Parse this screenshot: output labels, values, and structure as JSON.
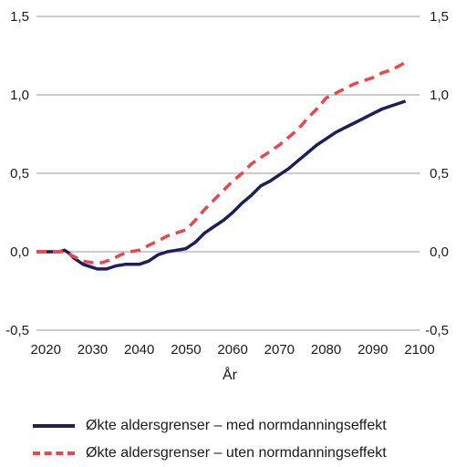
{
  "chart_data": {
    "type": "line",
    "title": "",
    "xlabel": "År",
    "ylabel": "",
    "xlim": [
      2018,
      2100
    ],
    "ylim": [
      -0.5,
      1.5
    ],
    "x_ticks": [
      2020,
      2030,
      2040,
      2050,
      2060,
      2070,
      2080,
      2090,
      2100
    ],
    "y_ticks": [
      -0.5,
      0.0,
      0.5,
      1.0,
      1.5
    ],
    "y_tick_labels": [
      "-0,5",
      "0,0",
      "0,5",
      "1,0",
      "1,5"
    ],
    "x_tick_labels": [
      "2020",
      "2030",
      "2040",
      "2050",
      "2060",
      "2070",
      "2080",
      "2090",
      "2100"
    ],
    "y_axis_both_sides": true,
    "grid": "horizontal",
    "legend_position": "bottom",
    "series": [
      {
        "name": "Økte aldersgrenser – med normdanningseffekt",
        "color": "#1c1f5a",
        "style": "solid",
        "x": [
          2018,
          2023,
          2024,
          2025,
          2026,
          2028,
          2030,
          2031,
          2033,
          2035,
          2037,
          2038,
          2040,
          2042,
          2044,
          2046,
          2048,
          2050,
          2052,
          2054,
          2056,
          2058,
          2060,
          2062,
          2064,
          2066,
          2068,
          2070,
          2072,
          2074,
          2076,
          2078,
          2080,
          2082,
          2084,
          2086,
          2088,
          2090,
          2092,
          2094,
          2096,
          2097
        ],
        "y": [
          0.0,
          0.0,
          0.01,
          -0.01,
          -0.04,
          -0.08,
          -0.1,
          -0.11,
          -0.11,
          -0.09,
          -0.08,
          -0.08,
          -0.08,
          -0.06,
          -0.02,
          0.0,
          0.01,
          0.02,
          0.06,
          0.12,
          0.16,
          0.2,
          0.25,
          0.31,
          0.36,
          0.42,
          0.45,
          0.49,
          0.53,
          0.58,
          0.63,
          0.68,
          0.72,
          0.76,
          0.79,
          0.82,
          0.85,
          0.88,
          0.91,
          0.93,
          0.95,
          0.96
        ]
      },
      {
        "name": "Økte aldersgrenser – uten normdanningseffekt",
        "color": "#e8474d",
        "style": "dashed",
        "x": [
          2018,
          2024,
          2026,
          2028,
          2030,
          2032,
          2034,
          2036,
          2038,
          2040,
          2042,
          2044,
          2046,
          2048,
          2050,
          2052,
          2054,
          2056,
          2058,
          2060,
          2062,
          2064,
          2066,
          2068,
          2070,
          2072,
          2074,
          2076,
          2078,
          2080,
          2082,
          2084,
          2086,
          2088,
          2090,
          2092,
          2094,
          2096,
          2097
        ],
        "y": [
          0.0,
          0.0,
          -0.03,
          -0.06,
          -0.07,
          -0.07,
          -0.05,
          -0.02,
          0.0,
          0.01,
          0.04,
          0.07,
          0.1,
          0.12,
          0.14,
          0.2,
          0.27,
          0.33,
          0.39,
          0.45,
          0.5,
          0.56,
          0.6,
          0.64,
          0.68,
          0.73,
          0.78,
          0.85,
          0.91,
          0.98,
          1.01,
          1.04,
          1.07,
          1.09,
          1.11,
          1.14,
          1.16,
          1.19,
          1.21
        ]
      }
    ]
  }
}
